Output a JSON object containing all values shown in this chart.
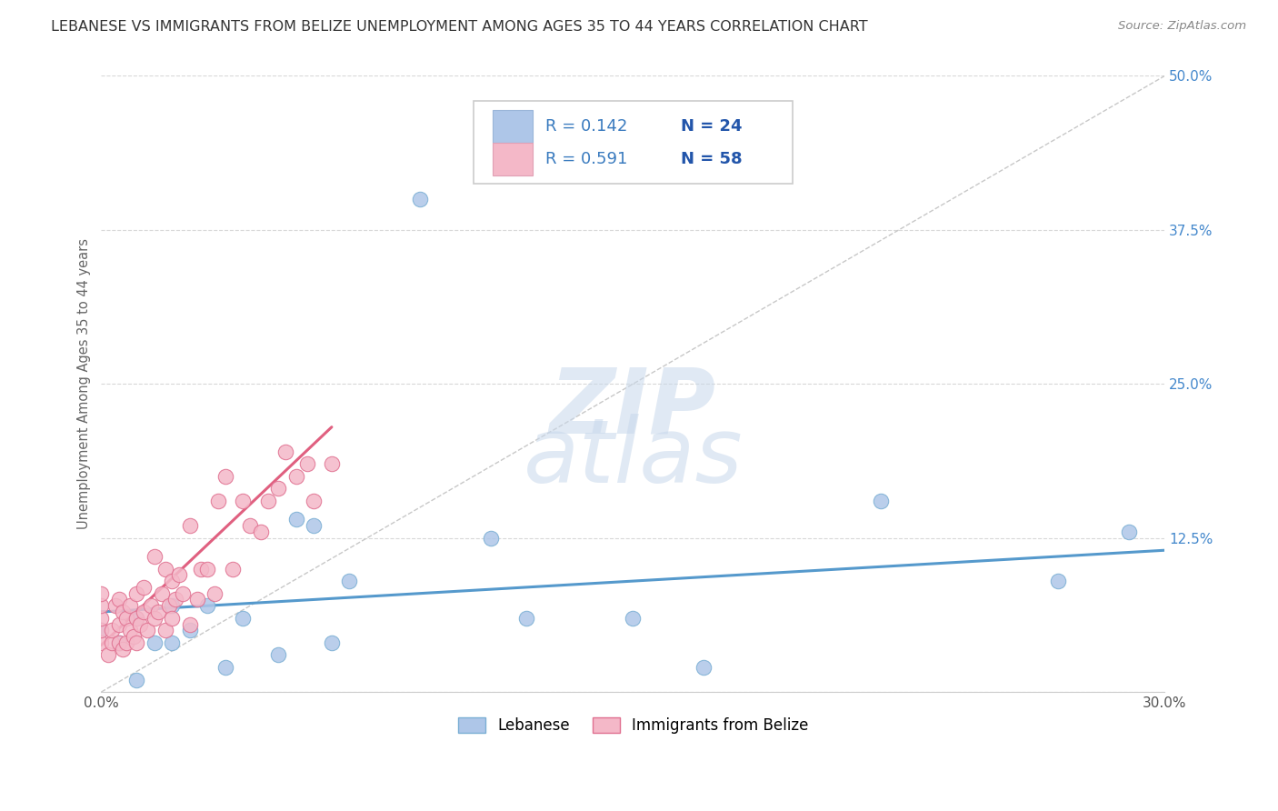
{
  "title": "LEBANESE VS IMMIGRANTS FROM BELIZE UNEMPLOYMENT AMONG AGES 35 TO 44 YEARS CORRELATION CHART",
  "source": "Source: ZipAtlas.com",
  "ylabel": "Unemployment Among Ages 35 to 44 years",
  "xlim": [
    0.0,
    0.3
  ],
  "ylim": [
    0.0,
    0.5
  ],
  "yticks": [
    0.0,
    0.125,
    0.25,
    0.375,
    0.5
  ],
  "ytick_labels": [
    "",
    "12.5%",
    "25.0%",
    "37.5%",
    "50.0%"
  ],
  "watermark_zip": "ZIP",
  "watermark_atlas": "atlas",
  "legend_entries": [
    {
      "label_r": "R = 0.142",
      "label_n": "N = 24",
      "color": "#aec6e8"
    },
    {
      "label_r": "R = 0.591",
      "label_n": "N = 58",
      "color": "#f4b8c8"
    }
  ],
  "legend_text_color": "#3a7bbf",
  "legend_n_color": "#2255aa",
  "series_lebanese": {
    "name": "Lebanese",
    "color": "#aec6e8",
    "edge_color": "#7bafd4",
    "x": [
      0.0,
      0.005,
      0.01,
      0.01,
      0.015,
      0.02,
      0.02,
      0.025,
      0.03,
      0.035,
      0.04,
      0.05,
      0.055,
      0.06,
      0.065,
      0.07,
      0.09,
      0.11,
      0.12,
      0.15,
      0.17,
      0.22,
      0.27,
      0.29
    ],
    "y": [
      0.05,
      0.04,
      0.06,
      0.01,
      0.04,
      0.04,
      0.07,
      0.05,
      0.07,
      0.02,
      0.06,
      0.03,
      0.14,
      0.135,
      0.04,
      0.09,
      0.4,
      0.125,
      0.06,
      0.06,
      0.02,
      0.155,
      0.09,
      0.13
    ]
  },
  "series_belize": {
    "name": "Immigrants from Belize",
    "color": "#f4b8c8",
    "edge_color": "#e07090",
    "x": [
      0.0,
      0.0,
      0.0,
      0.0,
      0.0,
      0.002,
      0.003,
      0.003,
      0.004,
      0.005,
      0.005,
      0.005,
      0.006,
      0.006,
      0.007,
      0.007,
      0.008,
      0.008,
      0.009,
      0.01,
      0.01,
      0.01,
      0.011,
      0.012,
      0.012,
      0.013,
      0.014,
      0.015,
      0.015,
      0.016,
      0.017,
      0.018,
      0.018,
      0.019,
      0.02,
      0.02,
      0.021,
      0.022,
      0.023,
      0.025,
      0.025,
      0.027,
      0.028,
      0.03,
      0.032,
      0.033,
      0.035,
      0.037,
      0.04,
      0.042,
      0.045,
      0.047,
      0.05,
      0.052,
      0.055,
      0.058,
      0.06,
      0.065
    ],
    "y": [
      0.04,
      0.05,
      0.06,
      0.07,
      0.08,
      0.03,
      0.04,
      0.05,
      0.07,
      0.04,
      0.055,
      0.075,
      0.035,
      0.065,
      0.04,
      0.06,
      0.05,
      0.07,
      0.045,
      0.04,
      0.06,
      0.08,
      0.055,
      0.065,
      0.085,
      0.05,
      0.07,
      0.06,
      0.11,
      0.065,
      0.08,
      0.05,
      0.1,
      0.07,
      0.06,
      0.09,
      0.075,
      0.095,
      0.08,
      0.055,
      0.135,
      0.075,
      0.1,
      0.1,
      0.08,
      0.155,
      0.175,
      0.1,
      0.155,
      0.135,
      0.13,
      0.155,
      0.165,
      0.195,
      0.175,
      0.185,
      0.155,
      0.185
    ]
  },
  "trendline_lebanese": {
    "x": [
      0.0,
      0.3
    ],
    "y": [
      0.065,
      0.115
    ],
    "color": "#5599cc",
    "linewidth": 2.2
  },
  "trendline_belize": {
    "x": [
      0.0,
      0.065
    ],
    "y": [
      0.038,
      0.215
    ],
    "color": "#e06080",
    "linewidth": 2.2
  },
  "diagonal_line": {
    "x": [
      0.0,
      0.3
    ],
    "y": [
      0.0,
      0.5
    ],
    "color": "#c8c8c8",
    "linestyle": "dashed",
    "linewidth": 1.0
  },
  "grid_color": "#d8d8d8",
  "background_color": "#ffffff",
  "title_fontsize": 11.5,
  "axis_label_fontsize": 10.5,
  "tick_fontsize": 11,
  "source_fontsize": 9.5,
  "legend_fontsize": 13
}
